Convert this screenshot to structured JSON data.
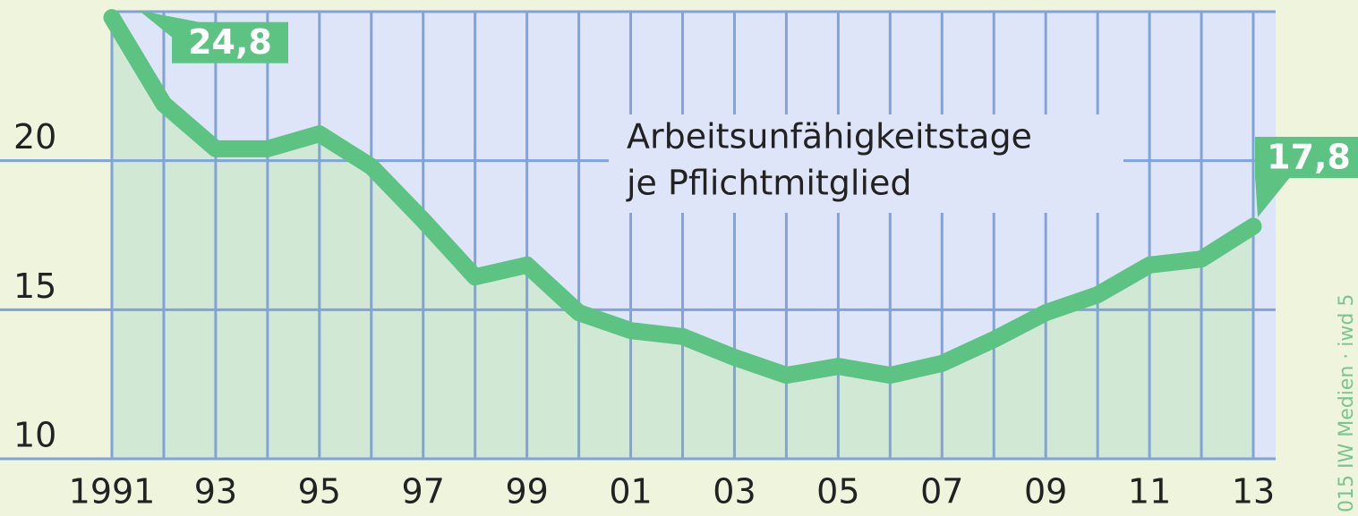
{
  "chart_data": {
    "type": "line",
    "annotation": [
      "Arbeitsunfähigkeitstage",
      "je Pflichtmitglied"
    ],
    "source": "015 IW Medien · iwd 5",
    "x": [
      1991,
      1992,
      1993,
      1994,
      1995,
      1996,
      1997,
      1998,
      1999,
      2000,
      2001,
      2002,
      2003,
      2004,
      2005,
      2006,
      2007,
      2008,
      2009,
      2010,
      2011,
      2012,
      2013
    ],
    "series": [
      {
        "color": "#5cc383",
        "values": [
          24.8,
          21.9,
          20.4,
          20.4,
          20.9,
          19.8,
          18.0,
          16.1,
          16.5,
          14.9,
          14.3,
          14.1,
          13.4,
          12.8,
          13.1,
          12.8,
          13.2,
          14.0,
          14.9,
          15.5,
          16.5,
          16.7,
          17.8
        ],
        "value_labels": [
          "24,8",
          null,
          null,
          null,
          null,
          null,
          null,
          null,
          null,
          null,
          null,
          null,
          null,
          null,
          null,
          null,
          null,
          null,
          null,
          null,
          null,
          null,
          "17,8"
        ]
      }
    ],
    "xlim": [
      1991,
      2013
    ],
    "xticks": [
      {
        "value": 1991,
        "label": "1991"
      },
      {
        "value": 1993,
        "label": "93"
      },
      {
        "value": 1995,
        "label": "95"
      },
      {
        "value": 1997,
        "label": "97"
      },
      {
        "value": 1999,
        "label": "99"
      },
      {
        "value": 2001,
        "label": "01"
      },
      {
        "value": 2003,
        "label": "03"
      },
      {
        "value": 2005,
        "label": "05"
      },
      {
        "value": 2007,
        "label": "07"
      },
      {
        "value": 2009,
        "label": "09"
      },
      {
        "value": 2011,
        "label": "11"
      },
      {
        "value": 2013,
        "label": "13"
      }
    ],
    "ylim": [
      10,
      25
    ],
    "yticks": [
      10,
      15,
      20
    ],
    "grid": true
  }
}
